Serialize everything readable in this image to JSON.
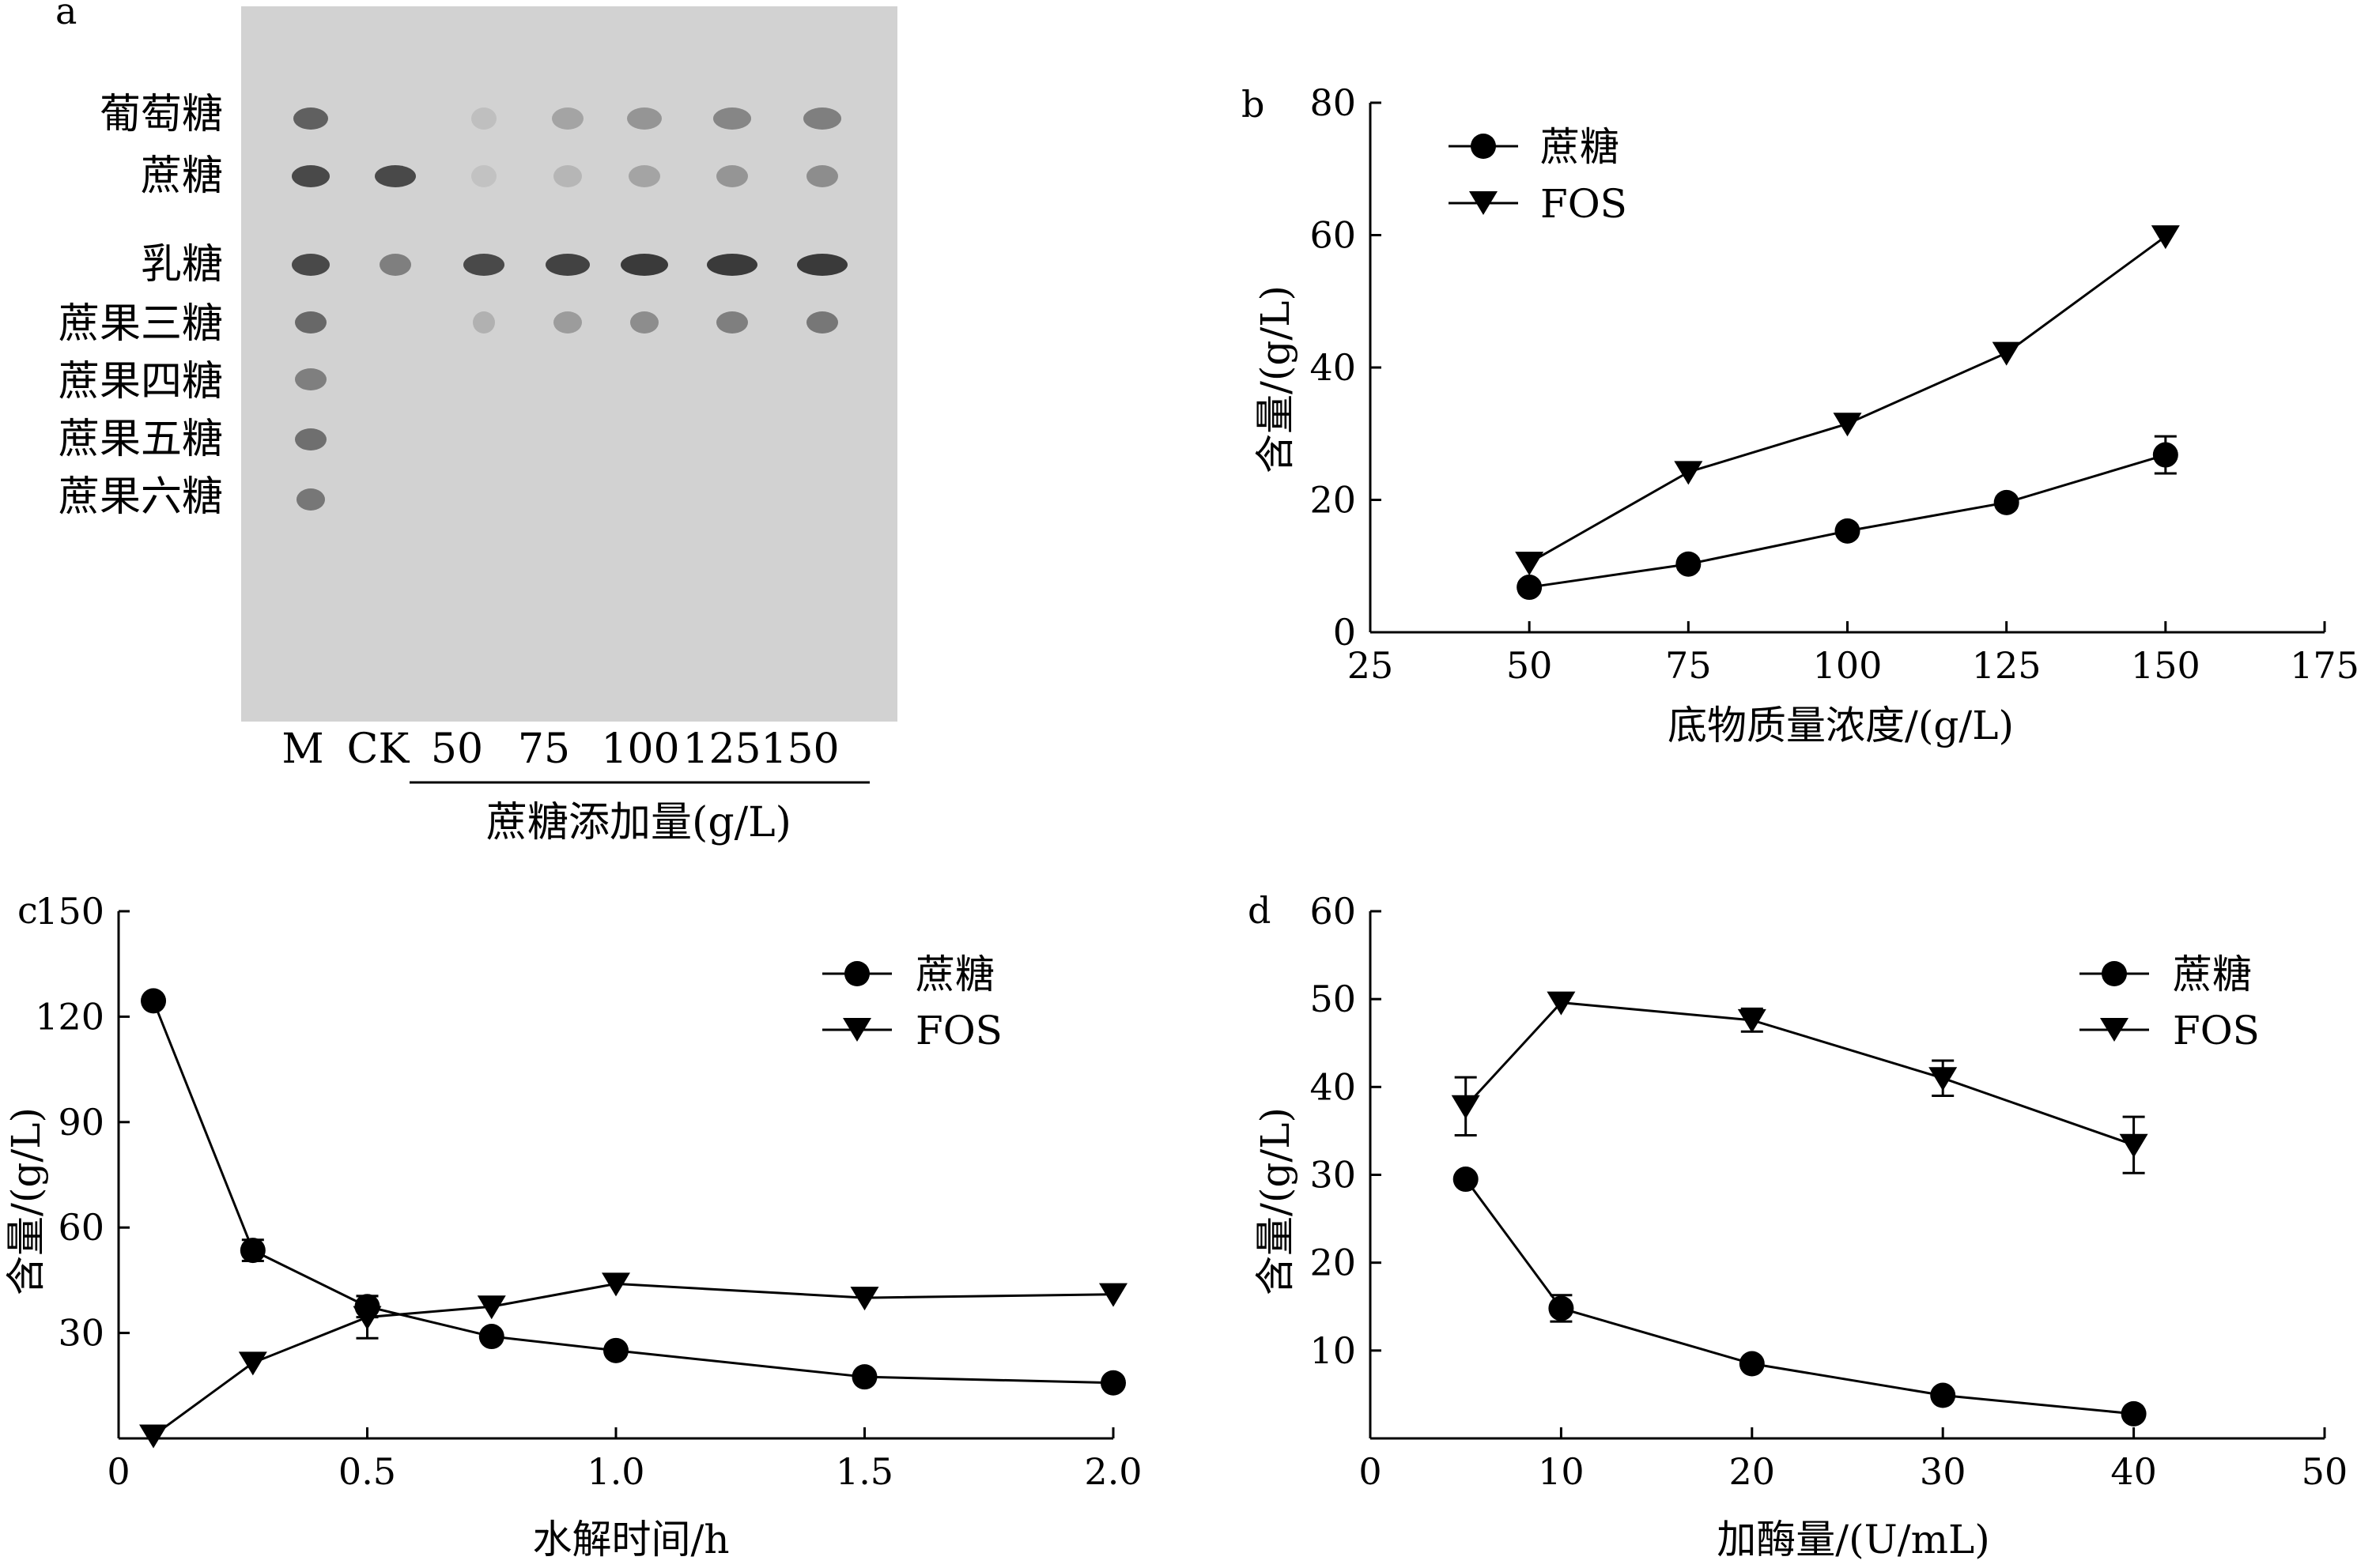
{
  "colors": {
    "ink": "#000000",
    "background": "#ffffff",
    "gel_bg": "#d2d2d2",
    "band": "#3a3a3a"
  },
  "chart_data": [
    {
      "panel": "a",
      "type": "other",
      "description_kind": "tlc-gel",
      "row_labels": [
        "葡萄糖",
        "蔗糖",
        "乳糖",
        "蔗果三糖",
        "蔗果四糖",
        "蔗果五糖",
        "蔗果六糖"
      ],
      "lane_labels": [
        "M",
        "CK",
        "50",
        "75",
        "100",
        "125",
        "150"
      ],
      "group_label": "蔗糖添加量(g/L)"
    },
    {
      "panel": "b",
      "type": "line",
      "xlabel": "底物质量浓度/(g/L)",
      "ylabel": "含量/(g/L)",
      "xlim": [
        25,
        175
      ],
      "ylim": [
        0,
        80
      ],
      "xticks": [
        25,
        50,
        75,
        100,
        125,
        150,
        175
      ],
      "yticks": [
        0,
        20,
        40,
        60,
        80
      ],
      "legend_position": "top-left",
      "series": [
        {
          "name": "蔗糖",
          "marker": "circle",
          "x": [
            50,
            75,
            100,
            125,
            150
          ],
          "y": [
            6.8,
            10.3,
            15.3,
            19.6,
            26.8
          ],
          "err": [
            0.8,
            0.8,
            0.8,
            0.8,
            2.8
          ]
        },
        {
          "name": "FOS",
          "marker": "triangle-down",
          "x": [
            50,
            75,
            100,
            125,
            150
          ],
          "y": [
            10.5,
            24.2,
            31.5,
            42.2,
            59.8
          ],
          "err": [
            0,
            0,
            0,
            0,
            0
          ]
        }
      ]
    },
    {
      "panel": "c",
      "type": "line",
      "xlabel": "水解时间/h",
      "ylabel": "含量/(g/L)",
      "xlim": [
        0,
        2.0
      ],
      "ylim": [
        0,
        150
      ],
      "xticks": [
        "0",
        "0.5",
        "1.0",
        "1.5",
        "2.0"
      ],
      "xtick_values": [
        0,
        0.5,
        1.0,
        1.5,
        2.0
      ],
      "yticks": [
        30,
        60,
        90,
        120,
        150
      ],
      "legend_position": "top-right",
      "series": [
        {
          "name": "蔗糖",
          "marker": "circle",
          "x": [
            0.07,
            0.27,
            0.5,
            0.75,
            1.0,
            1.5,
            2.0
          ],
          "y": [
            124.5,
            53.5,
            37.5,
            29.0,
            25.0,
            17.5,
            15.8
          ],
          "err": [
            0,
            3,
            3,
            0,
            0,
            0,
            0
          ]
        },
        {
          "name": "FOS",
          "marker": "triangle-down",
          "x": [
            0.07,
            0.27,
            0.5,
            0.75,
            1.0,
            1.5,
            2.0
          ],
          "y": [
            0.8,
            21.5,
            34.5,
            37.5,
            44.0,
            40.0,
            41.0
          ],
          "err": [
            0,
            0,
            6,
            0,
            0,
            0,
            0
          ]
        }
      ]
    },
    {
      "panel": "d",
      "type": "line",
      "xlabel": "加酶量/(U/mL)",
      "ylabel": "含量/(g/L)",
      "xlim": [
        0,
        50
      ],
      "ylim": [
        0,
        60
      ],
      "xticks": [
        0,
        10,
        20,
        30,
        40,
        50
      ],
      "yticks": [
        10,
        20,
        30,
        40,
        50,
        60
      ],
      "legend_position": "top-right",
      "series": [
        {
          "name": "蔗糖",
          "marker": "circle",
          "x": [
            5,
            10,
            20,
            30,
            40
          ],
          "y": [
            29.5,
            14.8,
            8.5,
            4.9,
            2.8
          ],
          "err": [
            0,
            1.5,
            0,
            0,
            0
          ]
        },
        {
          "name": "FOS",
          "marker": "triangle-down",
          "x": [
            5,
            10,
            20,
            30,
            40
          ],
          "y": [
            37.8,
            49.6,
            47.6,
            41.0,
            33.4
          ],
          "err": [
            3.3,
            0,
            1.3,
            2.0,
            3.2
          ]
        }
      ]
    }
  ]
}
